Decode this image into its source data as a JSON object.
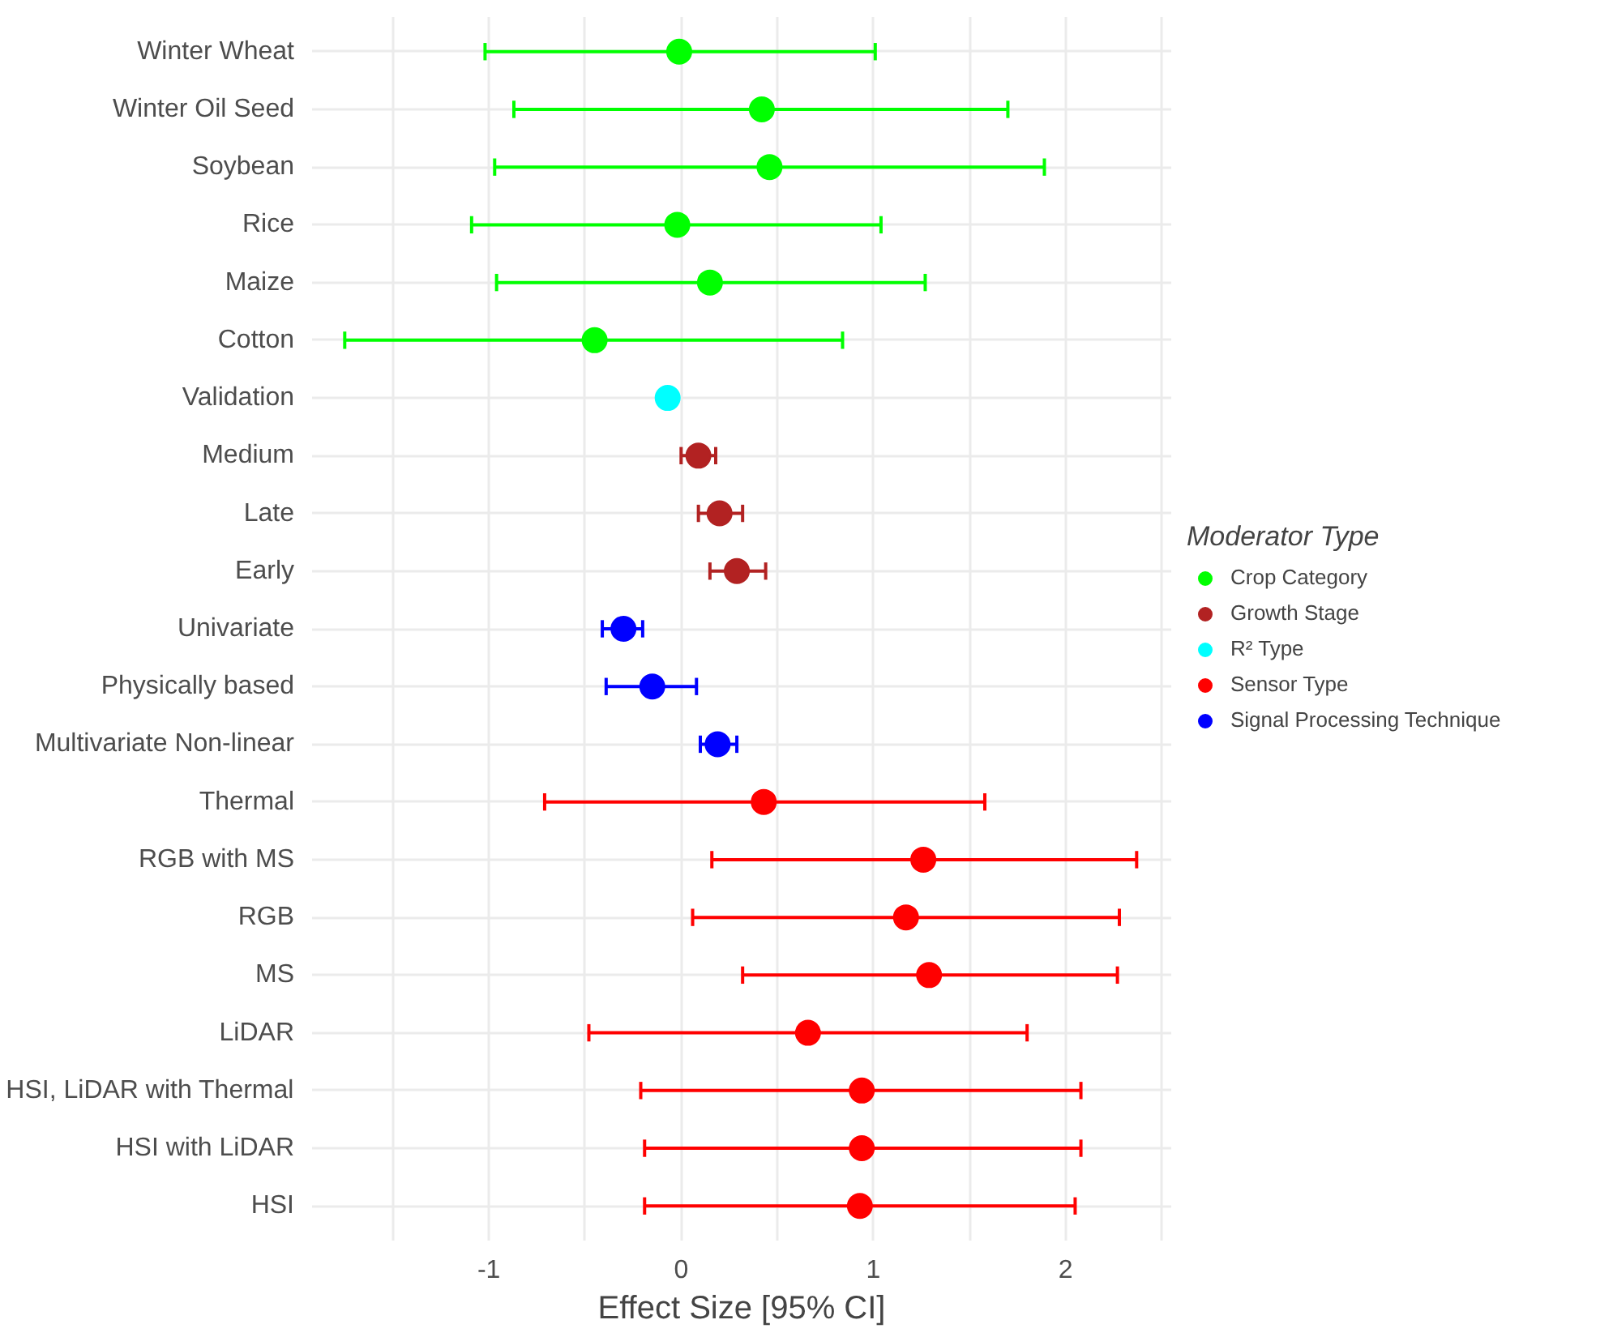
{
  "chart_data": {
    "type": "scatter",
    "orientation": "horizontal",
    "xlabel": "Effect Size [95% CI]",
    "legend_title": "Moderator Type",
    "legend": "right",
    "grid": true,
    "marker": "circle",
    "categories": [
      "Winter Wheat",
      "Winter Oil Seed",
      "Soybean",
      "Rice",
      "Maize",
      "Cotton",
      "Validation",
      "Medium",
      "Late",
      "Early",
      "Univariate",
      "Physically based",
      "Multivariate Non-linear",
      "Thermal",
      "RGB with MS",
      "RGB",
      "MS",
      "LiDAR",
      "HSI, LiDAR with Thermal",
      "HSI with LiDAR",
      "HSI"
    ],
    "xlim": [
      -1.92,
      2.55
    ],
    "xticks": [
      {
        "value": -1.5,
        "label": null
      },
      -1,
      {
        "value": -0.5,
        "label": null
      },
      0,
      {
        "value": 0.5,
        "label": null
      },
      1,
      {
        "value": 1.5,
        "label": null
      },
      2,
      {
        "value": 2.5,
        "label": null
      }
    ],
    "series": [
      {
        "name": "Crop Category",
        "color": "#00ff00",
        "values": [
          -0.01,
          0.42,
          0.46,
          -0.02,
          0.15,
          -0.45,
          null,
          null,
          null,
          null,
          null,
          null,
          null,
          null,
          null,
          null,
          null,
          null,
          null,
          null,
          null
        ],
        "errors": [
          [
            -1.02,
            1.01
          ],
          [
            -0.87,
            1.7
          ],
          [
            -0.97,
            1.89
          ],
          [
            -1.09,
            1.04
          ],
          [
            -0.96,
            1.27
          ],
          [
            -1.75,
            0.84
          ],
          null,
          null,
          null,
          null,
          null,
          null,
          null,
          null,
          null,
          null,
          null,
          null,
          null,
          null,
          null
        ]
      },
      {
        "name": "Growth Stage",
        "color": "#b22222",
        "values": [
          null,
          null,
          null,
          null,
          null,
          null,
          null,
          0.09,
          0.2,
          0.29,
          null,
          null,
          null,
          null,
          null,
          null,
          null,
          null,
          null,
          null,
          null
        ],
        "errors": [
          null,
          null,
          null,
          null,
          null,
          null,
          null,
          [
            0.0,
            0.18
          ],
          [
            0.09,
            0.32
          ],
          [
            0.15,
            0.44
          ],
          null,
          null,
          null,
          null,
          null,
          null,
          null,
          null,
          null,
          null,
          null
        ]
      },
      {
        "name": "R² Type",
        "color": "#00ffff",
        "values": [
          null,
          null,
          null,
          null,
          null,
          null,
          -0.07,
          null,
          null,
          null,
          null,
          null,
          null,
          null,
          null,
          null,
          null,
          null,
          null,
          null,
          null
        ]
      },
      {
        "name": "Sensor Type",
        "color": "#ff0000",
        "values": [
          null,
          null,
          null,
          null,
          null,
          null,
          null,
          null,
          null,
          null,
          null,
          null,
          null,
          0.43,
          1.26,
          1.17,
          1.29,
          0.66,
          0.94,
          0.94,
          0.93
        ],
        "errors": [
          null,
          null,
          null,
          null,
          null,
          null,
          null,
          null,
          null,
          null,
          null,
          null,
          null,
          [
            -0.71,
            1.58
          ],
          [
            0.16,
            2.37
          ],
          [
            0.06,
            2.28
          ],
          [
            0.32,
            2.27
          ],
          [
            -0.48,
            1.8
          ],
          [
            -0.21,
            2.08
          ],
          [
            -0.19,
            2.08
          ],
          [
            -0.19,
            2.05
          ]
        ]
      },
      {
        "name": "Signal Processing Technique",
        "color": "#0000ff",
        "values": [
          null,
          null,
          null,
          null,
          null,
          null,
          null,
          null,
          null,
          null,
          -0.3,
          -0.15,
          0.19,
          null,
          null,
          null,
          null,
          null,
          null,
          null,
          null
        ],
        "errors": [
          null,
          null,
          null,
          null,
          null,
          null,
          null,
          null,
          null,
          null,
          [
            -0.41,
            -0.2
          ],
          [
            -0.39,
            0.08
          ],
          [
            0.1,
            0.29
          ],
          null,
          null,
          null,
          null,
          null,
          null,
          null,
          null
        ]
      }
    ]
  }
}
